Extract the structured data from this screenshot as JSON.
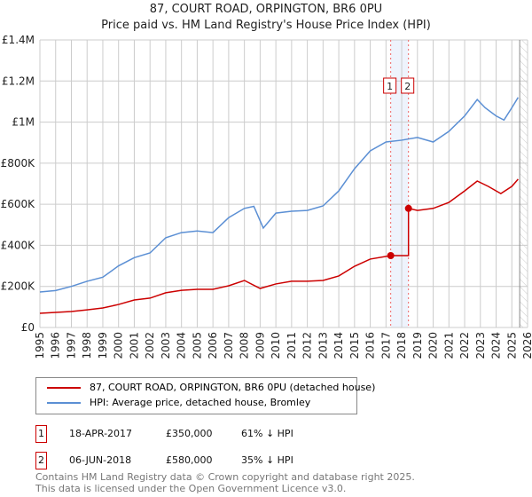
{
  "title_line1": "87, COURT ROAD, ORPINGTON, BR6 0PU",
  "title_line2": "Price paid vs. HM Land Registry's House Price Index (HPI)",
  "chart_data": {
    "type": "line",
    "ylim": [
      0,
      1400000
    ],
    "xlim": [
      1995,
      2026
    ],
    "y_ticks": [
      {
        "v": 0,
        "label": "£0"
      },
      {
        "v": 200000,
        "label": "£200K"
      },
      {
        "v": 400000,
        "label": "£400K"
      },
      {
        "v": 600000,
        "label": "£600K"
      },
      {
        "v": 800000,
        "label": "£800K"
      },
      {
        "v": 1000000,
        "label": "£1M"
      },
      {
        "v": 1200000,
        "label": "£1.2M"
      },
      {
        "v": 1400000,
        "label": "£1.4M"
      }
    ],
    "x_ticks": [
      "1995",
      "1996",
      "1997",
      "1998",
      "1999",
      "2000",
      "2001",
      "2002",
      "2003",
      "2004",
      "2005",
      "2006",
      "2007",
      "2008",
      "2009",
      "2010",
      "2011",
      "2012",
      "2013",
      "2014",
      "2015",
      "2016",
      "2017",
      "2018",
      "2019",
      "2020",
      "2021",
      "2022",
      "2023",
      "2024",
      "2025",
      "2026"
    ],
    "grid": true,
    "series": [
      {
        "name": "87, COURT ROAD, ORPINGTON, BR6 0PU (detached house)",
        "color": "#cc0000",
        "x": [
          1995,
          1997,
          1998,
          1999,
          2000,
          2001,
          2002,
          2003,
          2004,
          2005,
          2006,
          2007,
          2008,
          2009,
          2010,
          2011,
          2012,
          2013,
          2014,
          2015,
          2016,
          2017.3,
          2018.43,
          2018.43,
          2019,
          2020,
          2021,
          2022,
          2022.8,
          2023.5,
          2024.3,
          2025,
          2025.4
        ],
        "y": [
          69000,
          78000,
          86000,
          95000,
          112000,
          134000,
          143000,
          169000,
          181000,
          186000,
          186000,
          203000,
          229000,
          190000,
          212000,
          225000,
          225000,
          229000,
          251000,
          298000,
          333000,
          350000,
          350000,
          580000,
          570000,
          580000,
          609000,
          665000,
          713000,
          687000,
          652000,
          687000,
          722000
        ]
      },
      {
        "name": "HPI: Average price, detached house, Bromley",
        "color": "#5b8fd4",
        "x": [
          1995,
          1996,
          1997,
          1998,
          1999,
          2000,
          2001,
          2002,
          2003,
          2004,
          2005,
          2006,
          2007,
          2008,
          2008.6,
          2009.2,
          2010,
          2011,
          2012,
          2013,
          2014,
          2015,
          2016,
          2017,
          2018,
          2019,
          2020,
          2021,
          2022,
          2022.8,
          2023.3,
          2024,
          2024.5,
          2025,
          2025.4
        ],
        "y": [
          173000,
          180000,
          200000,
          225000,
          245000,
          300000,
          340000,
          363000,
          437000,
          462000,
          470000,
          462000,
          535000,
          580000,
          590000,
          484000,
          557000,
          566000,
          570000,
          592000,
          665000,
          773000,
          860000,
          903000,
          912000,
          925000,
          903000,
          955000,
          1030000,
          1110000,
          1070000,
          1030000,
          1010000,
          1070000,
          1120000
        ]
      }
    ],
    "annotations": [
      {
        "label": "1",
        "x": 2017.3,
        "price": 350000
      },
      {
        "label": "2",
        "x": 2018.43,
        "price": 580000
      }
    ],
    "shaded_range": [
      2017.3,
      2018.43
    ],
    "forecast_hatch_from": 2025.5
  },
  "legend": {
    "items": [
      "87, COURT ROAD, ORPINGTON, BR6 0PU (detached house)",
      "HPI: Average price, detached house, Bromley"
    ]
  },
  "transactions": [
    {
      "num": "1",
      "date": "18-APR-2017",
      "price": "£350,000",
      "hpi": "61% ↓ HPI"
    },
    {
      "num": "2",
      "date": "06-JUN-2018",
      "price": "£580,000",
      "hpi": "35% ↓ HPI"
    }
  ],
  "footer": {
    "line1": "Contains HM Land Registry data © Crown copyright and database right 2025.",
    "line2": "This data is licensed under the Open Government Licence v3.0."
  }
}
